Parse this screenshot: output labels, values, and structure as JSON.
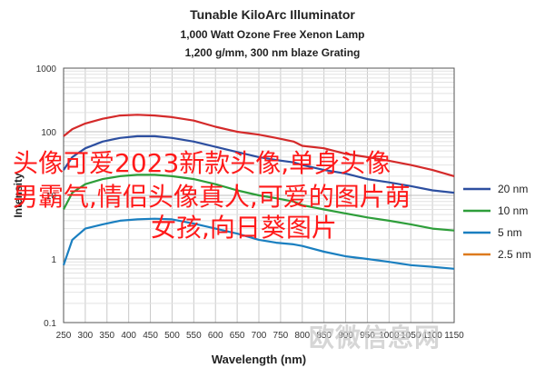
{
  "chart_data": {
    "type": "line",
    "title": "Tunable KiloArc Illuminator",
    "subtitle_1": "1,000 Watt Ozone Free Xenon Lamp",
    "subtitle_2": "1,200 g/mm, 300 nm blaze Grating",
    "xlabel": "Wavelength (nm)",
    "ylabel": "Intensity",
    "x_ticks": [
      250,
      300,
      350,
      400,
      450,
      500,
      550,
      600,
      650,
      700,
      750,
      800,
      850,
      900,
      950,
      1000,
      1050,
      1100,
      1150
    ],
    "y_ticks": [
      0.1,
      1,
      10,
      100,
      1000
    ],
    "y_tick_labels": [
      "0.1",
      "1",
      "10",
      "100",
      "1000"
    ],
    "xlim": [
      250,
      1150
    ],
    "ylim": [
      0.1,
      1000
    ],
    "y_scale": "log",
    "grid": true,
    "legend_position": "right",
    "series": [
      {
        "name": "",
        "color": "#d42a2a",
        "x": [
          250,
          270,
          300,
          340,
          380,
          420,
          460,
          500,
          550,
          600,
          650,
          700,
          740,
          780,
          800,
          850,
          900,
          950,
          1000,
          1050,
          1100,
          1150
        ],
        "y": [
          85,
          110,
          135,
          160,
          180,
          185,
          180,
          170,
          150,
          120,
          100,
          90,
          80,
          70,
          60,
          55,
          45,
          40,
          35,
          30,
          25,
          20
        ]
      },
      {
        "name": "20 nm",
        "color": "#2d4fa0",
        "x": [
          250,
          270,
          300,
          340,
          380,
          420,
          460,
          500,
          550,
          600,
          650,
          700,
          740,
          780,
          800,
          850,
          900,
          950,
          1000,
          1050,
          1100,
          1150
        ],
        "y": [
          25,
          40,
          55,
          70,
          80,
          85,
          85,
          80,
          70,
          58,
          48,
          40,
          36,
          33,
          30,
          25,
          22,
          18,
          16,
          14,
          12,
          11
        ]
      },
      {
        "name": "10 nm",
        "color": "#2e9e3a",
        "x": [
          250,
          270,
          300,
          340,
          380,
          420,
          460,
          500,
          550,
          600,
          650,
          700,
          740,
          780,
          800,
          850,
          900,
          950,
          1000,
          1050,
          1100,
          1150
        ],
        "y": [
          6,
          11,
          15,
          18,
          20,
          21,
          21,
          20,
          18,
          15,
          12,
          10,
          9,
          8,
          7,
          6,
          5.2,
          4.5,
          4,
          3.5,
          3,
          2.8
        ]
      },
      {
        "name": "5 nm",
        "color": "#1a7fc0",
        "x": [
          250,
          270,
          300,
          340,
          380,
          420,
          460,
          500,
          550,
          600,
          650,
          700,
          740,
          780,
          800,
          850,
          900,
          950,
          1000,
          1050,
          1100,
          1150
        ],
        "y": [
          0.8,
          2,
          3,
          3.5,
          4,
          4.2,
          4.3,
          4.2,
          3.6,
          3,
          2.5,
          2,
          1.8,
          1.7,
          1.6,
          1.3,
          1.1,
          1,
          0.9,
          0.8,
          0.75,
          0.7
        ]
      },
      {
        "name": "2.5 nm",
        "color": "#dd7a1e",
        "x": [],
        "y": []
      }
    ]
  },
  "overlay_text": {
    "line1": "头像可爱2023新款头像,单身头像",
    "line2": "男霸气,情侣头像真人,可爱的图片萌",
    "line3": "女孩,向日葵图片"
  },
  "watermark": "欧微信息网"
}
